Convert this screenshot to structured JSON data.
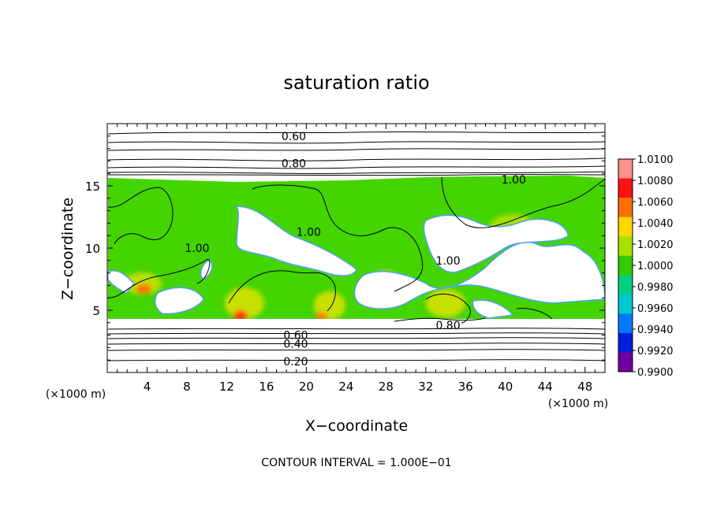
{
  "chart_data": {
    "type": "heatmap",
    "title": "saturation ratio",
    "xlabel": "X−coordinate",
    "ylabel": "Z−coordinate",
    "x_unit": "(×1000 m)",
    "z_unit": "(×1000 m)",
    "xlim": [
      0,
      50
    ],
    "ylim": [
      0,
      20
    ],
    "x_ticks": [
      4,
      8,
      12,
      16,
      20,
      24,
      28,
      32,
      36,
      40,
      44,
      48
    ],
    "y_ticks": [
      5,
      10,
      15
    ],
    "colorbar": {
      "min": 0.99,
      "max": 1.01,
      "labels": [
        "1.0100",
        "1.0080",
        "1.0060",
        "1.0040",
        "1.0020",
        "1.0000",
        "0.9980",
        "0.9960",
        "0.9940",
        "0.9920",
        "0.9900"
      ],
      "colors": [
        "#ff9090",
        "#ff1010",
        "#ff7000",
        "#ffd800",
        "#a8e000",
        "#30cc00",
        "#00d080",
        "#00c8d0",
        "#0078ff",
        "#0020d8",
        "#7000a0"
      ]
    },
    "contour_interval": "CONTOUR INTERVAL = 1.000E−01",
    "contour_labels": [
      {
        "text": "0.60",
        "x": 17.5,
        "z": 19.0
      },
      {
        "text": "0.80",
        "x": 17.5,
        "z": 16.8
      },
      {
        "text": "1.00",
        "x": 39.6,
        "z": 15.5
      },
      {
        "text": "1.00",
        "x": 7.8,
        "z": 10.0
      },
      {
        "text": "1.00",
        "x": 19.0,
        "z": 11.3
      },
      {
        "text": "1.00",
        "x": 33.0,
        "z": 9.0
      },
      {
        "text": "0.80",
        "x": 33.0,
        "z": 3.8
      },
      {
        "text": "0.60",
        "x": 17.7,
        "z": 3.0
      },
      {
        "text": "0.40",
        "x": 17.7,
        "z": 2.3
      },
      {
        "text": "0.20",
        "x": 17.7,
        "z": 0.9
      }
    ]
  }
}
